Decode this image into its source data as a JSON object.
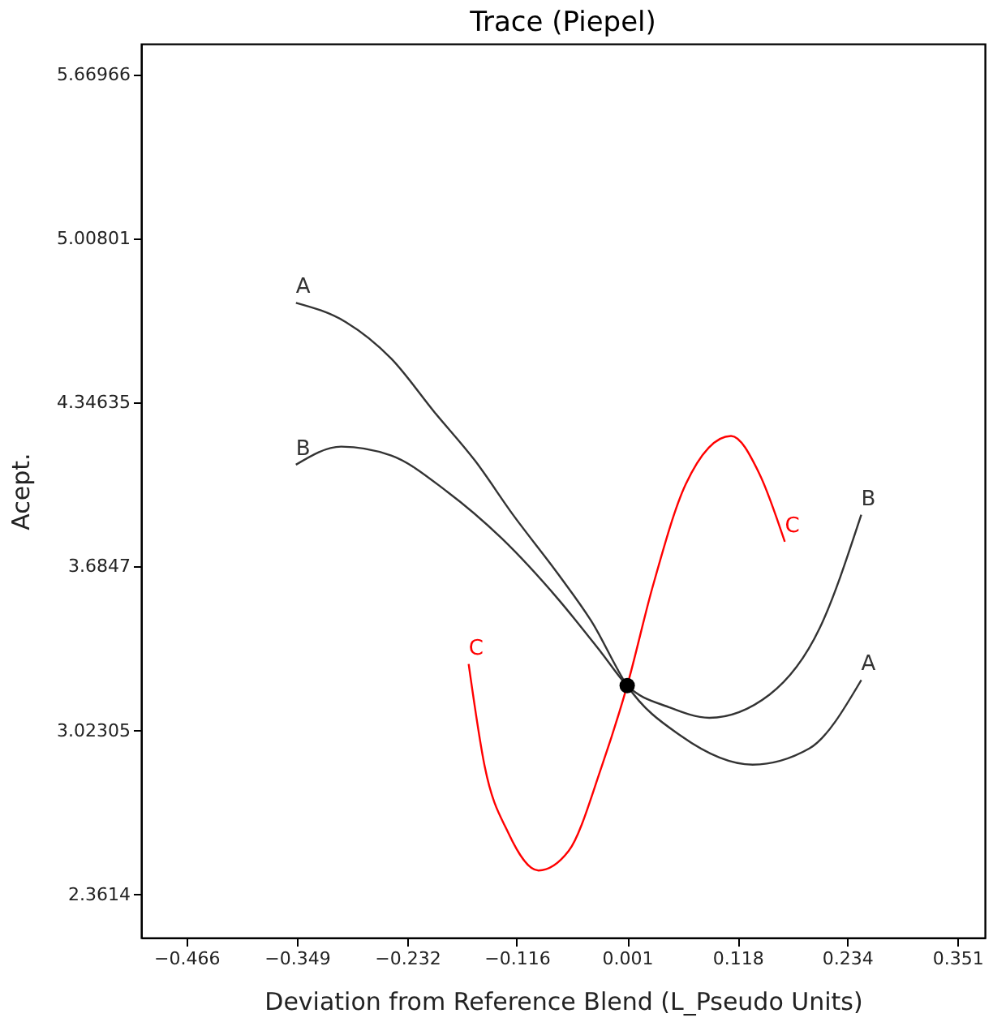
{
  "chart_data": {
    "type": "line",
    "title": "Trace (Piepel)",
    "xlabel": "Deviation from Reference Blend (L_Pseudo Units)",
    "ylabel": "Acept.",
    "xlim": [
      -0.514,
      0.38
    ],
    "ylim": [
      2.187,
      5.793
    ],
    "xticks": [
      -0.466,
      -0.349,
      -0.232,
      -0.116,
      0.001,
      0.118,
      0.234,
      0.351
    ],
    "yticks": [
      2.3614,
      3.02305,
      3.6847,
      4.34635,
      5.00801,
      5.66966
    ],
    "grid": false,
    "legend": false,
    "marker": "none",
    "line_style": "solid",
    "series": [
      {
        "name": "A",
        "color": "#333333",
        "x": [
          -0.35,
          -0.297,
          -0.249,
          -0.203,
          -0.16,
          -0.12,
          -0.072,
          -0.036,
          0.001,
          0.058,
          0.134,
          0.194,
          0.249
        ],
        "values": [
          4.748,
          4.67,
          4.523,
          4.306,
          4.11,
          3.893,
          3.653,
          3.458,
          3.204,
          3.001,
          2.885,
          2.95,
          3.226
        ]
      },
      {
        "name": "B",
        "color": "#333333",
        "x": [
          -0.35,
          -0.302,
          -0.249,
          -0.19,
          -0.132,
          -0.072,
          -0.026,
          0.001,
          0.045,
          0.088,
          0.152,
          0.205,
          0.249
        ],
        "values": [
          4.095,
          4.168,
          4.132,
          3.987,
          3.798,
          3.552,
          3.335,
          3.204,
          3.117,
          3.074,
          3.168,
          3.436,
          3.893
        ]
      },
      {
        "name": "C",
        "color": "#ff0000",
        "x": [
          -0.167,
          -0.15,
          -0.125,
          -0.093,
          -0.061,
          -0.026,
          0.001,
          0.028,
          0.063,
          0.111,
          0.141,
          0.168
        ],
        "values": [
          3.291,
          2.878,
          2.61,
          2.458,
          2.537,
          2.878,
          3.204,
          3.603,
          4.016,
          4.211,
          4.059,
          3.784
        ]
      },
      {
        "type": "scatter",
        "marker": "circle",
        "color": "#000000",
        "x": [
          0.001
        ],
        "values": [
          3.204
        ]
      }
    ]
  }
}
